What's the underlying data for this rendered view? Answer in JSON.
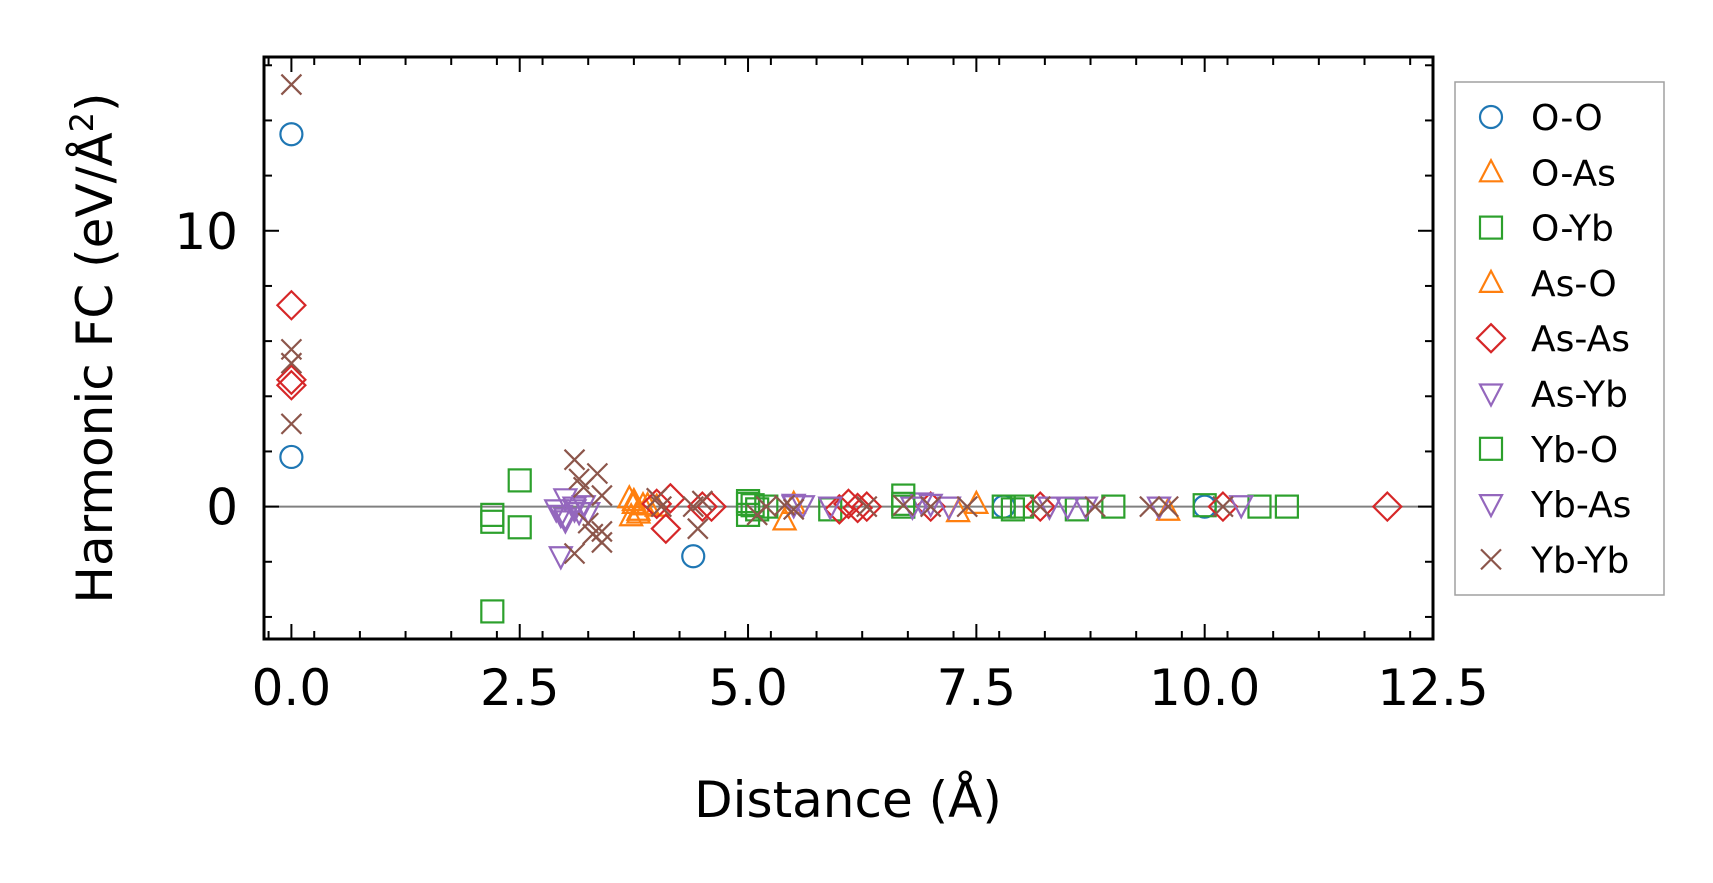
{
  "chart_data": {
    "type": "scatter",
    "title": "",
    "xlabel": "Distance (Å)",
    "ylabel_main": "Harmonic FC (eV/Å",
    "ylabel_sup": "2",
    "ylabel_close": ")",
    "xlim": [
      -0.3,
      12.5
    ],
    "ylim": [
      -4.8,
      16.3
    ],
    "x_ticks": [
      {
        "value": 0.0,
        "label": "0.0"
      },
      {
        "value": 2.5,
        "label": "2.5"
      },
      {
        "value": 5.0,
        "label": "5.0"
      },
      {
        "value": 7.5,
        "label": "7.5"
      },
      {
        "value": 10.0,
        "label": "10.0"
      },
      {
        "value": 12.5,
        "label": "12.5"
      }
    ],
    "y_ticks": [
      {
        "value": 0,
        "label": "0"
      },
      {
        "value": 10,
        "label": "10"
      }
    ],
    "zero_line": 0,
    "legend_position": "outside-right",
    "colors": {
      "blue": "#1f77b4",
      "orange": "#ff7f0e",
      "green": "#2ca02c",
      "red": "#d62728",
      "purple": "#9467bd",
      "brown": "#8c564b",
      "zero_line": "#808080"
    },
    "series": [
      {
        "name": "O-O",
        "marker": "circle",
        "color": "#1f77b4",
        "points": [
          [
            0,
            13.5
          ],
          [
            0,
            1.8
          ],
          [
            4.4,
            -1.8
          ],
          [
            7.8,
            0
          ],
          [
            10.0,
            0
          ]
        ]
      },
      {
        "name": "O-As",
        "marker": "triangle-up",
        "color": "#ff7f0e",
        "points": [
          [
            3.7,
            0.3
          ],
          [
            3.75,
            0.1
          ],
          [
            3.8,
            -0.15
          ],
          [
            3.72,
            -0.35
          ],
          [
            3.9,
            0.05
          ],
          [
            5.4,
            -0.5
          ],
          [
            5.5,
            0.1
          ],
          [
            7.3,
            -0.2
          ],
          [
            7.5,
            0.1
          ],
          [
            9.6,
            -0.15
          ]
        ]
      },
      {
        "name": "O-Yb",
        "marker": "square",
        "color": "#2ca02c",
        "points": [
          [
            2.2,
            -0.3
          ],
          [
            2.2,
            -0.55
          ],
          [
            2.2,
            -3.8
          ],
          [
            2.5,
            0.95
          ],
          [
            2.5,
            -0.75
          ],
          [
            5.0,
            0.2
          ],
          [
            5.0,
            -0.3
          ],
          [
            5.05,
            0.05
          ],
          [
            5.2,
            0
          ],
          [
            5.9,
            -0.1
          ],
          [
            6.7,
            0.4
          ],
          [
            6.7,
            0
          ],
          [
            7.8,
            0
          ],
          [
            7.9,
            -0.1
          ],
          [
            8.6,
            -0.1
          ],
          [
            9.0,
            0
          ],
          [
            10.0,
            0.05
          ],
          [
            10.6,
            0
          ],
          [
            10.9,
            0
          ]
        ]
      },
      {
        "name": "As-O",
        "marker": "triangle-up",
        "color": "#ff7f0e",
        "points": [
          [
            3.75,
            0.2
          ],
          [
            3.8,
            -0.25
          ],
          [
            3.85,
            0.05
          ],
          [
            4.0,
            0
          ]
        ]
      },
      {
        "name": "As-As",
        "marker": "diamond",
        "color": "#d62728",
        "points": [
          [
            0,
            7.3
          ],
          [
            0,
            4.6
          ],
          [
            0,
            4.4
          ],
          [
            4.0,
            0.1
          ],
          [
            4.1,
            -0.8
          ],
          [
            4.15,
            0.3
          ],
          [
            4.5,
            0
          ],
          [
            4.6,
            0
          ],
          [
            6.0,
            -0.1
          ],
          [
            6.1,
            0.1
          ],
          [
            6.2,
            -0.05
          ],
          [
            6.3,
            0
          ],
          [
            7.0,
            0
          ],
          [
            8.2,
            0
          ],
          [
            10.2,
            0
          ],
          [
            12.0,
            0
          ]
        ]
      },
      {
        "name": "As-Yb",
        "marker": "triangle-down",
        "color": "#9467bd",
        "points": [
          [
            2.9,
            -0.1
          ],
          [
            2.95,
            -0.3
          ],
          [
            3.0,
            0.3
          ],
          [
            3.0,
            -0.5
          ],
          [
            3.1,
            0
          ],
          [
            3.15,
            -0.2
          ],
          [
            3.2,
            0.05
          ],
          [
            3.25,
            -0.2
          ],
          [
            2.95,
            -1.8
          ],
          [
            5.5,
            0.1
          ],
          [
            5.6,
            0.05
          ],
          [
            5.9,
            0
          ],
          [
            6.9,
            0.15
          ],
          [
            7.0,
            0.1
          ],
          [
            7.2,
            0
          ],
          [
            8.3,
            0
          ],
          [
            8.7,
            0
          ],
          [
            9.5,
            0
          ],
          [
            10.4,
            0.05
          ]
        ]
      },
      {
        "name": "Yb-O",
        "marker": "square",
        "color": "#2ca02c",
        "points": [
          [
            5.0,
            0.1
          ],
          [
            5.1,
            -0.1
          ],
          [
            6.7,
            0.1
          ],
          [
            8.0,
            0
          ]
        ]
      },
      {
        "name": "Yb-As",
        "marker": "triangle-down",
        "color": "#9467bd",
        "points": [
          [
            3.0,
            -0.4
          ],
          [
            3.1,
            -0.1
          ],
          [
            5.5,
            0.05
          ],
          [
            6.8,
            0
          ],
          [
            8.5,
            0
          ]
        ]
      },
      {
        "name": "Yb-Yb",
        "marker": "x",
        "color": "#8c564b",
        "points": [
          [
            0,
            15.3
          ],
          [
            0,
            5.7
          ],
          [
            0,
            5.2
          ],
          [
            0,
            3.0
          ],
          [
            3.1,
            1.7
          ],
          [
            3.15,
            1.0
          ],
          [
            3.2,
            0.7
          ],
          [
            3.25,
            -0.6
          ],
          [
            3.3,
            -1.0
          ],
          [
            3.35,
            1.2
          ],
          [
            3.4,
            0.4
          ],
          [
            3.4,
            -0.9
          ],
          [
            3.1,
            -1.7
          ],
          [
            3.4,
            -1.3
          ],
          [
            4.0,
            0.3
          ],
          [
            4.05,
            0
          ],
          [
            4.4,
            0
          ],
          [
            4.45,
            -0.8
          ],
          [
            4.5,
            0.2
          ],
          [
            5.1,
            -0.3
          ],
          [
            5.2,
            0
          ],
          [
            5.4,
            0.05
          ],
          [
            5.5,
            -0.1
          ],
          [
            6.3,
            0
          ],
          [
            6.7,
            0.05
          ],
          [
            7.0,
            0
          ],
          [
            7.4,
            0
          ],
          [
            8.2,
            0
          ],
          [
            8.8,
            0
          ],
          [
            9.4,
            0
          ],
          [
            9.6,
            0
          ],
          [
            10.2,
            0
          ]
        ]
      }
    ]
  }
}
